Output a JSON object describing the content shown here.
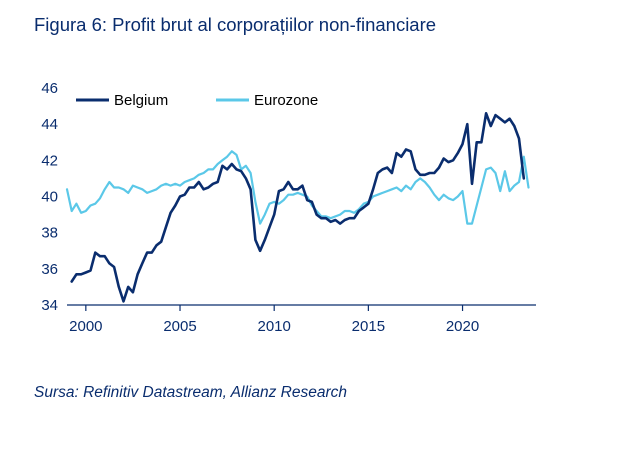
{
  "title": "Figura 6: Profit brut al corporațiilor non-financiare",
  "source": "Sursa: Refinitiv Datastream, Allianz Research",
  "colors": {
    "Belgium": "#0a2d6e",
    "Eurozone": "#5bc8e8",
    "text": "#0a2d6e",
    "axis": "#0a2d6e"
  },
  "chart_data": {
    "type": "line",
    "title": "Figura 6: Profit brut al corporațiilor non-financiare",
    "xlabel": "",
    "ylabel": "",
    "xlim": [
      1999.0,
      2023.9
    ],
    "ylim": [
      34,
      46
    ],
    "xticks": [
      2000,
      2005,
      2010,
      2015,
      2020
    ],
    "xtick_labels": [
      "2000",
      "2005",
      "2010",
      "2015",
      "2020"
    ],
    "yticks": [
      34,
      36,
      38,
      40,
      42,
      44,
      46
    ],
    "ytick_labels": [
      "34",
      "36",
      "38",
      "40",
      "42",
      "44",
      "46"
    ],
    "grid": false,
    "legend_position": "top",
    "series": [
      {
        "name": "Belgium",
        "points": [
          [
            1999.25,
            35.3
          ],
          [
            1999.5,
            35.7
          ],
          [
            1999.75,
            35.7
          ],
          [
            2000.0,
            35.8
          ],
          [
            2000.25,
            35.9
          ],
          [
            2000.5,
            36.9
          ],
          [
            2000.75,
            36.7
          ],
          [
            2001.0,
            36.7
          ],
          [
            2001.25,
            36.3
          ],
          [
            2001.5,
            36.1
          ],
          [
            2001.75,
            35.0
          ],
          [
            2002.0,
            34.2
          ],
          [
            2002.25,
            35.0
          ],
          [
            2002.5,
            34.7
          ],
          [
            2002.75,
            35.7
          ],
          [
            2003.0,
            36.3
          ],
          [
            2003.25,
            36.9
          ],
          [
            2003.5,
            36.9
          ],
          [
            2003.75,
            37.3
          ],
          [
            2004.0,
            37.5
          ],
          [
            2004.25,
            38.3
          ],
          [
            2004.5,
            39.1
          ],
          [
            2004.75,
            39.5
          ],
          [
            2005.0,
            40.0
          ],
          [
            2005.25,
            40.1
          ],
          [
            2005.5,
            40.5
          ],
          [
            2005.75,
            40.5
          ],
          [
            2006.0,
            40.8
          ],
          [
            2006.25,
            40.4
          ],
          [
            2006.5,
            40.5
          ],
          [
            2006.75,
            40.7
          ],
          [
            2007.0,
            40.8
          ],
          [
            2007.25,
            41.7
          ],
          [
            2007.5,
            41.5
          ],
          [
            2007.75,
            41.8
          ],
          [
            2008.0,
            41.5
          ],
          [
            2008.25,
            41.4
          ],
          [
            2008.5,
            41.0
          ],
          [
            2008.75,
            40.4
          ],
          [
            2009.0,
            37.6
          ],
          [
            2009.25,
            37.0
          ],
          [
            2009.5,
            37.6
          ],
          [
            2009.75,
            38.3
          ],
          [
            2010.0,
            39.0
          ],
          [
            2010.25,
            40.3
          ],
          [
            2010.5,
            40.4
          ],
          [
            2010.75,
            40.8
          ],
          [
            2011.0,
            40.4
          ],
          [
            2011.25,
            40.4
          ],
          [
            2011.5,
            40.6
          ],
          [
            2011.75,
            39.8
          ],
          [
            2012.0,
            39.7
          ],
          [
            2012.25,
            39.0
          ],
          [
            2012.5,
            38.8
          ],
          [
            2012.75,
            38.8
          ],
          [
            2013.0,
            38.6
          ],
          [
            2013.25,
            38.7
          ],
          [
            2013.5,
            38.5
          ],
          [
            2013.75,
            38.7
          ],
          [
            2014.0,
            38.8
          ],
          [
            2014.25,
            38.8
          ],
          [
            2014.5,
            39.2
          ],
          [
            2014.75,
            39.4
          ],
          [
            2015.0,
            39.6
          ],
          [
            2015.25,
            40.4
          ],
          [
            2015.5,
            41.3
          ],
          [
            2015.75,
            41.5
          ],
          [
            2016.0,
            41.6
          ],
          [
            2016.25,
            41.3
          ],
          [
            2016.5,
            42.4
          ],
          [
            2016.75,
            42.2
          ],
          [
            2017.0,
            42.6
          ],
          [
            2017.25,
            42.5
          ],
          [
            2017.5,
            41.5
          ],
          [
            2017.75,
            41.2
          ],
          [
            2018.0,
            41.2
          ],
          [
            2018.25,
            41.3
          ],
          [
            2018.5,
            41.3
          ],
          [
            2018.75,
            41.6
          ],
          [
            2019.0,
            42.1
          ],
          [
            2019.25,
            41.9
          ],
          [
            2019.5,
            42.0
          ],
          [
            2019.75,
            42.4
          ],
          [
            2020.0,
            42.9
          ],
          [
            2020.25,
            44.0
          ],
          [
            2020.5,
            40.7
          ],
          [
            2020.75,
            43.0
          ],
          [
            2021.0,
            43.0
          ],
          [
            2021.25,
            44.6
          ],
          [
            2021.5,
            43.9
          ],
          [
            2021.75,
            44.5
          ],
          [
            2022.0,
            44.3
          ],
          [
            2022.25,
            44.1
          ],
          [
            2022.5,
            44.3
          ],
          [
            2022.75,
            43.9
          ],
          [
            2023.0,
            43.2
          ],
          [
            2023.25,
            41.0
          ]
        ]
      },
      {
        "name": "Eurozone",
        "points": [
          [
            1999.0,
            40.4
          ],
          [
            1999.25,
            39.2
          ],
          [
            1999.5,
            39.6
          ],
          [
            1999.75,
            39.1
          ],
          [
            2000.0,
            39.2
          ],
          [
            2000.25,
            39.5
          ],
          [
            2000.5,
            39.6
          ],
          [
            2000.75,
            39.9
          ],
          [
            2001.0,
            40.4
          ],
          [
            2001.25,
            40.8
          ],
          [
            2001.5,
            40.5
          ],
          [
            2001.75,
            40.5
          ],
          [
            2002.0,
            40.4
          ],
          [
            2002.25,
            40.2
          ],
          [
            2002.5,
            40.6
          ],
          [
            2002.75,
            40.5
          ],
          [
            2003.0,
            40.4
          ],
          [
            2003.25,
            40.2
          ],
          [
            2003.5,
            40.3
          ],
          [
            2003.75,
            40.4
          ],
          [
            2004.0,
            40.6
          ],
          [
            2004.25,
            40.7
          ],
          [
            2004.5,
            40.6
          ],
          [
            2004.75,
            40.7
          ],
          [
            2005.0,
            40.6
          ],
          [
            2005.25,
            40.8
          ],
          [
            2005.5,
            40.9
          ],
          [
            2005.75,
            41.0
          ],
          [
            2006.0,
            41.2
          ],
          [
            2006.25,
            41.3
          ],
          [
            2006.5,
            41.5
          ],
          [
            2006.75,
            41.5
          ],
          [
            2007.0,
            41.8
          ],
          [
            2007.25,
            42.0
          ],
          [
            2007.5,
            42.2
          ],
          [
            2007.75,
            42.5
          ],
          [
            2008.0,
            42.3
          ],
          [
            2008.25,
            41.5
          ],
          [
            2008.5,
            41.7
          ],
          [
            2008.75,
            41.3
          ],
          [
            2009.0,
            39.7
          ],
          [
            2009.25,
            38.5
          ],
          [
            2009.5,
            39.0
          ],
          [
            2009.75,
            39.6
          ],
          [
            2010.0,
            39.7
          ],
          [
            2010.25,
            39.6
          ],
          [
            2010.5,
            39.8
          ],
          [
            2010.75,
            40.1
          ],
          [
            2011.0,
            40.1
          ],
          [
            2011.25,
            40.2
          ],
          [
            2011.5,
            40.1
          ],
          [
            2011.75,
            40.0
          ],
          [
            2012.0,
            39.5
          ],
          [
            2012.25,
            39.2
          ],
          [
            2012.5,
            38.9
          ],
          [
            2012.75,
            38.9
          ],
          [
            2013.0,
            38.8
          ],
          [
            2013.25,
            38.9
          ],
          [
            2013.5,
            39.0
          ],
          [
            2013.75,
            39.2
          ],
          [
            2014.0,
            39.2
          ],
          [
            2014.25,
            39.1
          ],
          [
            2014.5,
            39.3
          ],
          [
            2014.75,
            39.6
          ],
          [
            2015.0,
            39.7
          ],
          [
            2015.25,
            40.0
          ],
          [
            2015.5,
            40.1
          ],
          [
            2015.75,
            40.2
          ],
          [
            2016.0,
            40.3
          ],
          [
            2016.25,
            40.4
          ],
          [
            2016.5,
            40.5
          ],
          [
            2016.75,
            40.3
          ],
          [
            2017.0,
            40.6
          ],
          [
            2017.25,
            40.4
          ],
          [
            2017.5,
            40.8
          ],
          [
            2017.75,
            41.0
          ],
          [
            2018.0,
            40.8
          ],
          [
            2018.25,
            40.5
          ],
          [
            2018.5,
            40.1
          ],
          [
            2018.75,
            39.8
          ],
          [
            2019.0,
            40.1
          ],
          [
            2019.25,
            39.9
          ],
          [
            2019.5,
            39.8
          ],
          [
            2019.75,
            40.0
          ],
          [
            2020.0,
            40.3
          ],
          [
            2020.25,
            38.5
          ],
          [
            2020.5,
            38.5
          ],
          [
            2020.75,
            39.5
          ],
          [
            2021.0,
            40.5
          ],
          [
            2021.25,
            41.5
          ],
          [
            2021.5,
            41.6
          ],
          [
            2021.75,
            41.3
          ],
          [
            2022.0,
            40.3
          ],
          [
            2022.25,
            41.4
          ],
          [
            2022.5,
            40.3
          ],
          [
            2022.75,
            40.6
          ],
          [
            2023.0,
            40.8
          ],
          [
            2023.25,
            42.2
          ],
          [
            2023.5,
            40.5
          ]
        ]
      }
    ]
  }
}
